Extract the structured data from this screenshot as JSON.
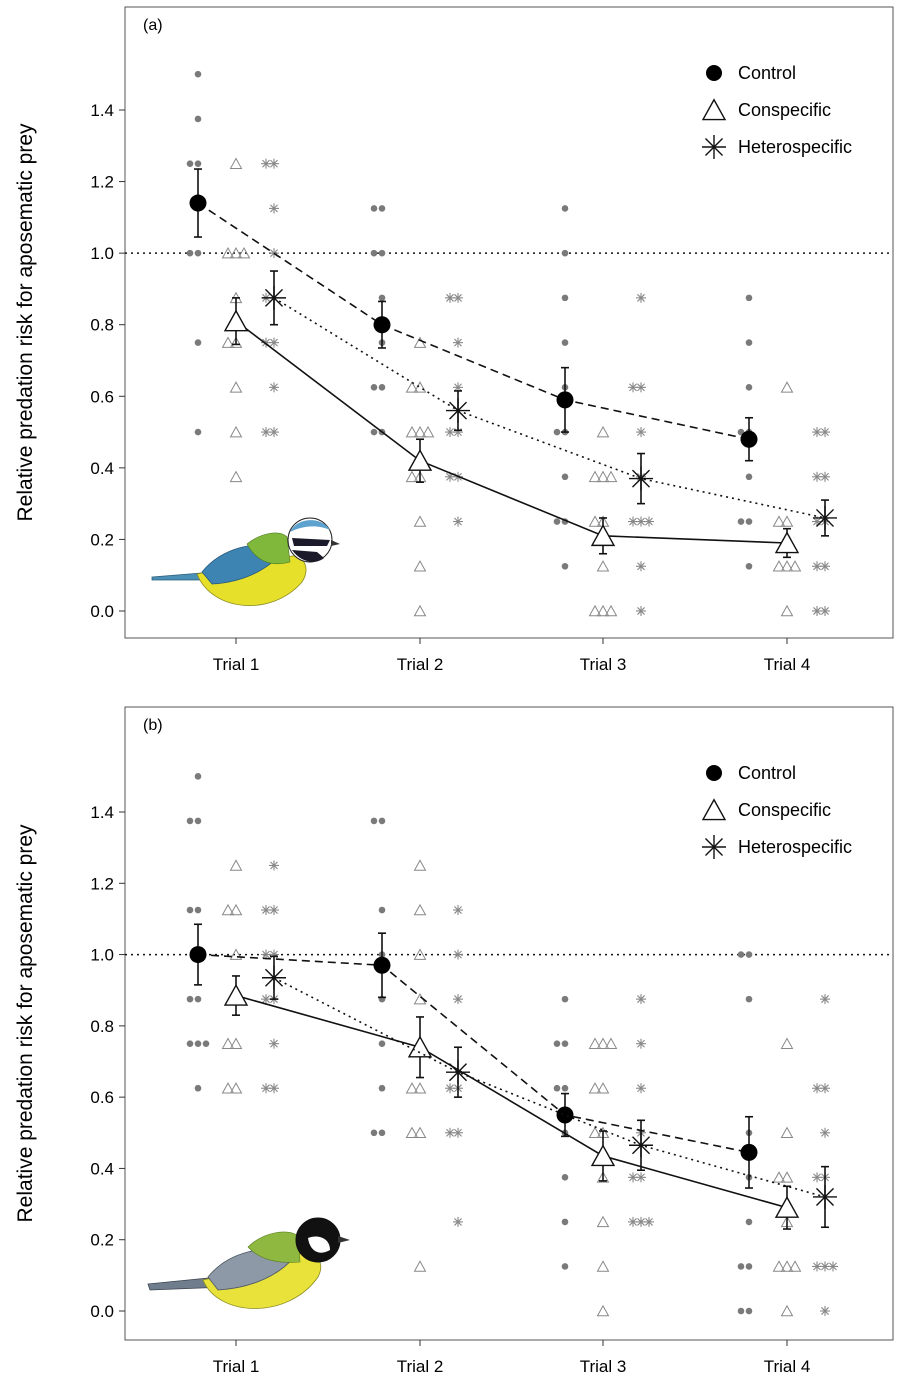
{
  "chart_data": [
    {
      "type": "scatter",
      "panel_label": "(a)",
      "ylabel": "Relative predation risk for aposematic prey",
      "xlabel": "",
      "categories": [
        "Trial 1",
        "Trial 2",
        "Trial 3",
        "Trial 4"
      ],
      "ylim": [
        -0.08,
        1.68
      ],
      "yticks": [
        "0.0",
        "0.2",
        "0.4",
        "0.6",
        "0.8",
        "1.0",
        "1.2",
        "1.4"
      ],
      "reference_line": 1.0,
      "legend_position": "top-right",
      "illustration": "blue-tit",
      "series": [
        {
          "name": "Control",
          "marker": "filled-circle",
          "line": "dashed",
          "means": [
            1.14,
            0.8,
            0.59,
            0.48
          ],
          "errors": [
            0.095,
            0.065,
            0.09,
            0.06
          ],
          "raw": [
            [
              1.5,
              1.375,
              1.25,
              1.25,
              1.125,
              1.0,
              1.0,
              0.75,
              0.5
            ],
            [
              1.125,
              1.125,
              1.0,
              1.0,
              0.875,
              0.75,
              0.625,
              0.625,
              0.5,
              0.5
            ],
            [
              1.125,
              1.0,
              0.875,
              0.75,
              0.625,
              0.5,
              0.5,
              0.375,
              0.25,
              0.25,
              0.125
            ],
            [
              0.875,
              0.75,
              0.625,
              0.5,
              0.5,
              0.375,
              0.25,
              0.25,
              0.125
            ]
          ]
        },
        {
          "name": "Conspecific",
          "marker": "open-triangle",
          "line": "solid",
          "means": [
            0.81,
            0.42,
            0.21,
            0.19
          ],
          "errors": [
            0.065,
            0.06,
            0.05,
            0.04
          ],
          "raw": [
            [
              1.25,
              1.0,
              1.0,
              1.0,
              0.875,
              0.75,
              0.75,
              0.625,
              0.5,
              0.375
            ],
            [
              0.75,
              0.625,
              0.625,
              0.5,
              0.5,
              0.5,
              0.375,
              0.375,
              0.25,
              0.125,
              0.0
            ],
            [
              0.5,
              0.375,
              0.375,
              0.375,
              0.25,
              0.25,
              0.125,
              0.0,
              0.0,
              0.0
            ],
            [
              0.625,
              0.25,
              0.25,
              0.125,
              0.125,
              0.125,
              0.0
            ]
          ]
        },
        {
          "name": "Heterospecific",
          "marker": "asterisk",
          "line": "dotted",
          "means": [
            0.875,
            0.56,
            0.37,
            0.26
          ],
          "errors": [
            0.075,
            0.055,
            0.07,
            0.05
          ],
          "raw": [
            [
              1.25,
              1.25,
              1.125,
              1.0,
              0.875,
              0.875,
              0.75,
              0.75,
              0.625,
              0.5,
              0.5
            ],
            [
              0.875,
              0.875,
              0.75,
              0.625,
              0.5,
              0.5,
              0.375,
              0.375,
              0.25
            ],
            [
              0.875,
              0.625,
              0.625,
              0.5,
              0.375,
              0.25,
              0.25,
              0.25,
              0.125,
              0.0
            ],
            [
              0.5,
              0.5,
              0.375,
              0.375,
              0.25,
              0.25,
              0.125,
              0.125,
              0.0,
              0.0
            ]
          ]
        }
      ]
    },
    {
      "type": "scatter",
      "panel_label": "(b)",
      "ylabel": "Relative predation risk for aposematic prey",
      "xlabel": "",
      "categories": [
        "Trial 1",
        "Trial 2",
        "Trial 3",
        "Trial 4"
      ],
      "ylim": [
        -0.08,
        1.68
      ],
      "yticks": [
        "0.0",
        "0.2",
        "0.4",
        "0.6",
        "0.8",
        "1.0",
        "1.2",
        "1.4"
      ],
      "reference_line": 1.0,
      "legend_position": "top-right",
      "illustration": "great-tit",
      "series": [
        {
          "name": "Control",
          "marker": "filled-circle",
          "line": "dashed",
          "means": [
            1.0,
            0.97,
            0.55,
            0.445
          ],
          "errors": [
            0.085,
            0.09,
            0.06,
            0.1
          ],
          "raw": [
            [
              1.5,
              1.375,
              1.375,
              1.125,
              1.125,
              1.0,
              0.875,
              0.875,
              0.75,
              0.75,
              0.75,
              0.625
            ],
            [
              1.375,
              1.375,
              1.125,
              1.0,
              0.875,
              0.75,
              0.625,
              0.5,
              0.5
            ],
            [
              0.875,
              0.75,
              0.75,
              0.625,
              0.625,
              0.5,
              0.375,
              0.25,
              0.125
            ],
            [
              1.0,
              1.0,
              0.875,
              0.5,
              0.375,
              0.25,
              0.125,
              0.125,
              0.0,
              0.0
            ]
          ]
        },
        {
          "name": "Conspecific",
          "marker": "open-triangle",
          "line": "solid",
          "means": [
            0.885,
            0.74,
            0.435,
            0.29
          ],
          "errors": [
            0.055,
            0.085,
            0.07,
            0.06
          ],
          "raw": [
            [
              1.25,
              1.125,
              1.125,
              1.0,
              0.875,
              0.75,
              0.75,
              0.625,
              0.625
            ],
            [
              1.25,
              1.125,
              1.0,
              0.875,
              0.75,
              0.625,
              0.625,
              0.5,
              0.5,
              0.125
            ],
            [
              0.75,
              0.75,
              0.75,
              0.625,
              0.625,
              0.5,
              0.5,
              0.375,
              0.25,
              0.125,
              0.0
            ],
            [
              0.75,
              0.5,
              0.375,
              0.375,
              0.25,
              0.125,
              0.125,
              0.125,
              0.0
            ]
          ]
        },
        {
          "name": "Heterospecific",
          "marker": "asterisk",
          "line": "dotted",
          "means": [
            0.935,
            0.67,
            0.465,
            0.32
          ],
          "errors": [
            0.06,
            0.07,
            0.07,
            0.085
          ],
          "raw": [
            [
              1.25,
              1.125,
              1.125,
              1.0,
              1.0,
              0.875,
              0.875,
              0.75,
              0.625,
              0.625
            ],
            [
              1.125,
              1.0,
              0.875,
              0.625,
              0.625,
              0.5,
              0.5,
              0.25
            ],
            [
              0.875,
              0.75,
              0.625,
              0.5,
              0.375,
              0.375,
              0.25,
              0.25,
              0.25
            ],
            [
              0.875,
              0.625,
              0.625,
              0.5,
              0.375,
              0.375,
              0.125,
              0.125,
              0.125,
              0.0
            ]
          ]
        }
      ]
    }
  ]
}
